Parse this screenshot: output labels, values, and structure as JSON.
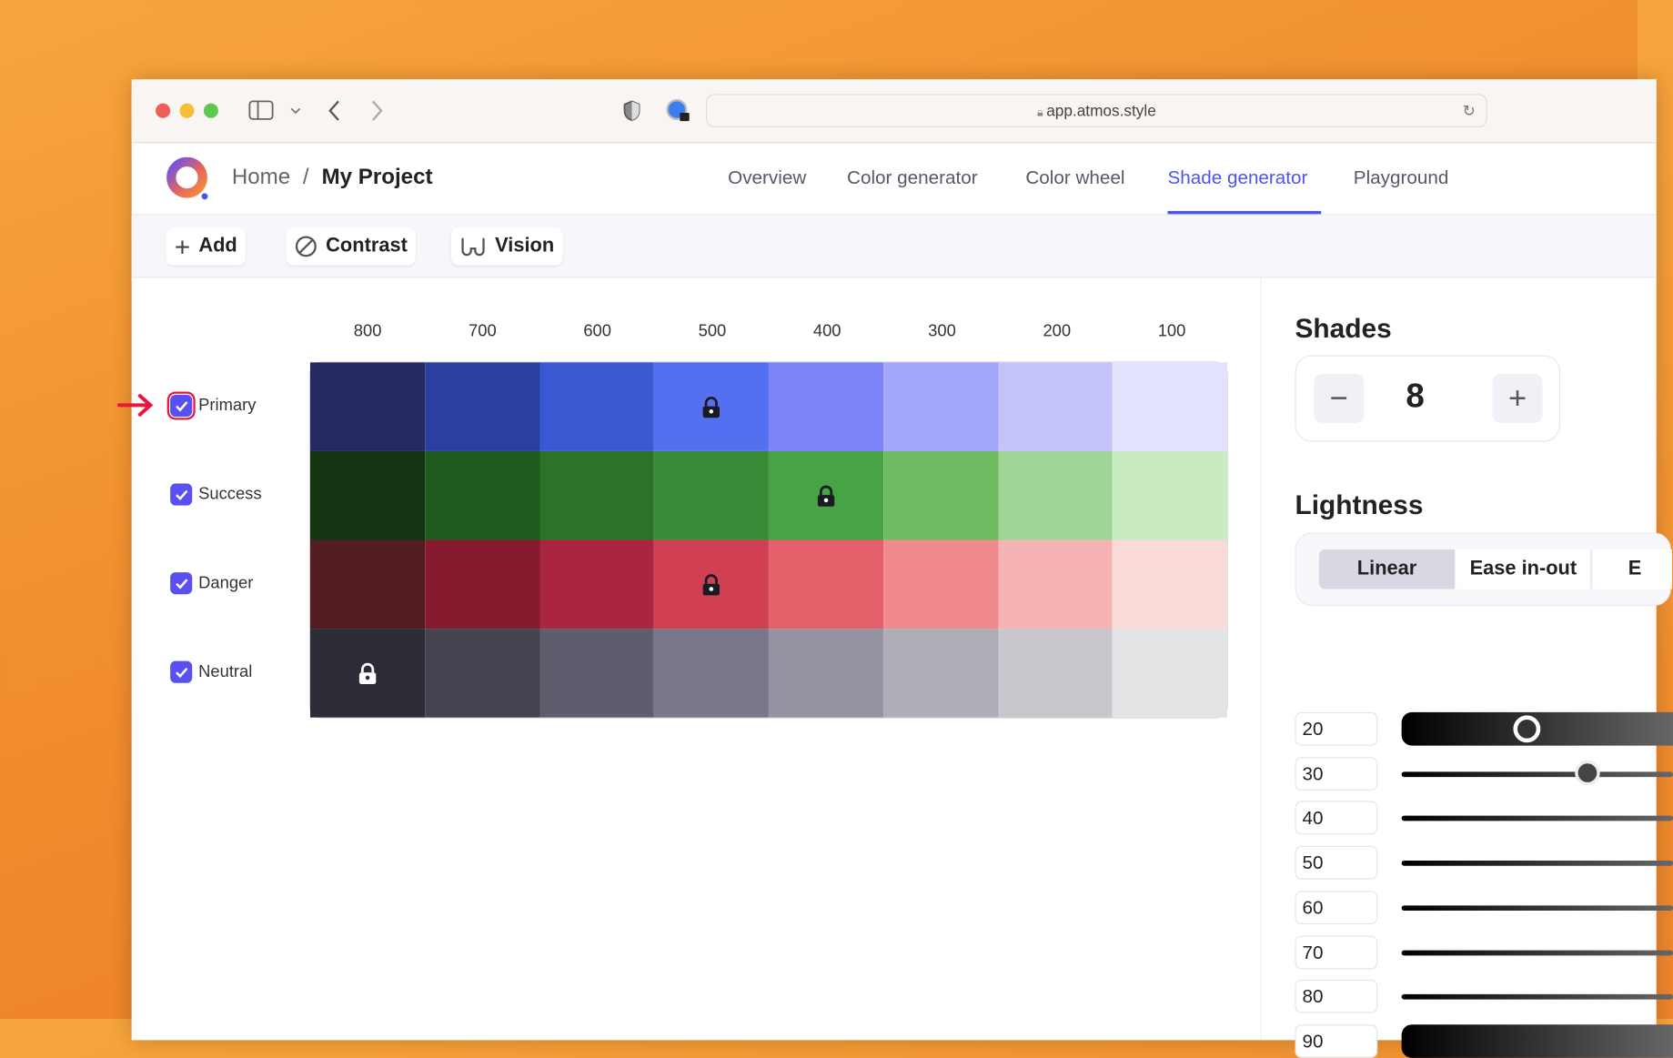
{
  "browser": {
    "url": "app.atmos.style"
  },
  "header": {
    "breadcrumb": [
      "Home",
      "/",
      "My Project"
    ],
    "nav": [
      {
        "label": "Overview"
      },
      {
        "label": "Color generator"
      },
      {
        "label": "Color wheel"
      },
      {
        "label": "Shade generator",
        "active": true
      },
      {
        "label": "Playground"
      }
    ],
    "accent": "#4b56e8"
  },
  "toolbar": {
    "add": "Add",
    "contrast": "Contrast",
    "vision": "Vision"
  },
  "shades_grid": {
    "columns": [
      "800",
      "700",
      "600",
      "500",
      "400",
      "300",
      "200",
      "100"
    ],
    "rows": [
      {
        "label": "Primary",
        "checked": true,
        "highlighted": true,
        "locked_index": 3,
        "colors": [
          "#252a63",
          "#2a3fa0",
          "#3a58d2",
          "#5470f0",
          "#7d84f8",
          "#a3a6fa",
          "#c4c4fb",
          "#e3e3fd"
        ]
      },
      {
        "label": "Success",
        "checked": true,
        "locked_index": 4,
        "colors": [
          "#133512",
          "#1f5a1f",
          "#2a7328",
          "#3a8a37",
          "#48a345",
          "#6fbb62",
          "#9ed594",
          "#c8ebc1"
        ]
      },
      {
        "label": "Danger",
        "checked": true,
        "locked_index": 3,
        "colors": [
          "#521c23",
          "#861b2f",
          "#aa2540",
          "#d03f52",
          "#e6606b",
          "#f08a8c",
          "#f5b4b3",
          "#fadad9"
        ]
      },
      {
        "label": "Neutral",
        "checked": true,
        "locked_index": 0,
        "colors": [
          "#2d2c36",
          "#45434f",
          "#5f5d6d",
          "#787789",
          "#9593a1",
          "#afaeb8",
          "#c8c7cd",
          "#e3e3e6"
        ]
      }
    ]
  },
  "side": {
    "shades_title": "Shades",
    "shades_count": "8",
    "minus": "−",
    "plus": "+",
    "lightness_title": "Lightness",
    "curves": [
      {
        "label": "Linear",
        "active": true
      },
      {
        "label": "Ease in-out"
      },
      {
        "label": "E"
      }
    ],
    "lightness_values": [
      "20",
      "30",
      "40",
      "50",
      "60",
      "70",
      "80",
      "90"
    ]
  }
}
